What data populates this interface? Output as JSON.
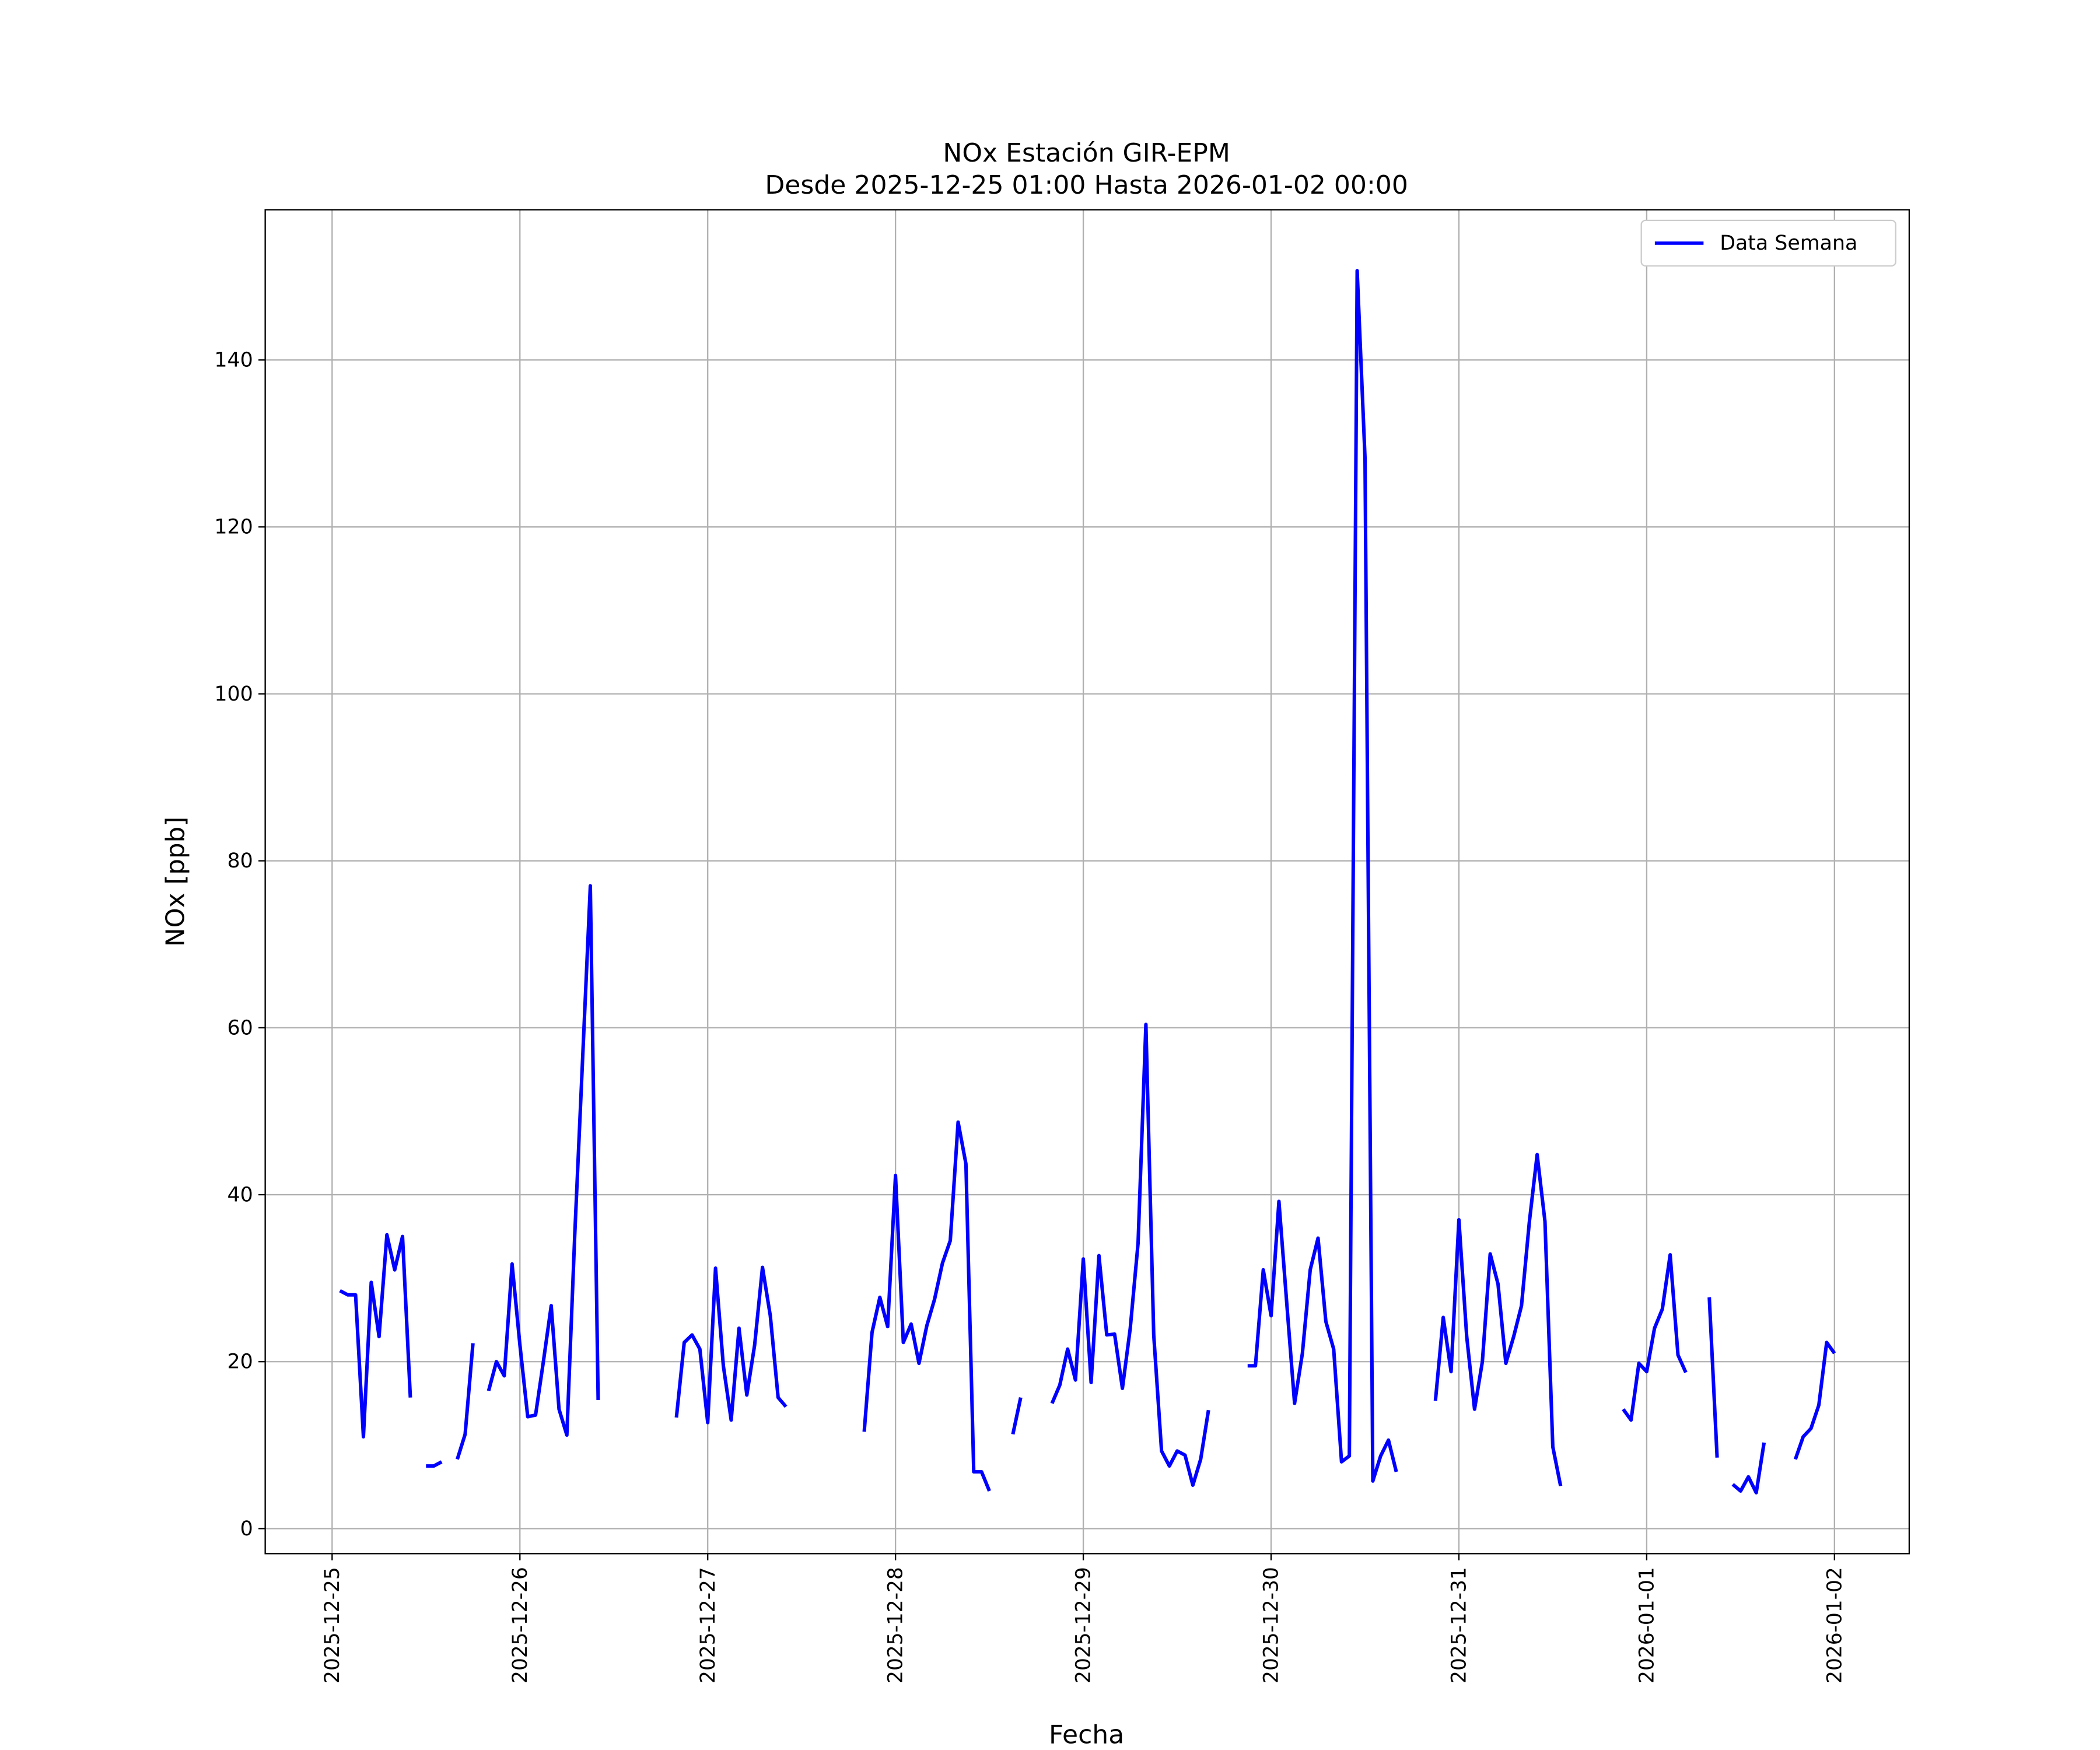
{
  "chart_data": {
    "type": "line",
    "title": "NOx Estación GIR-EPM",
    "subtitle": "Desde 2025-12-25 01:00 Hasta 2026-01-02 00:00",
    "x_label": "Fecha",
    "y_label": "NOx [ppb]",
    "x": [
      "2025-12-25 01:00",
      "2025-12-25 02:00",
      "2025-12-25 03:00",
      "2025-12-25 04:00",
      "2025-12-25 05:00",
      "2025-12-25 06:00",
      "2025-12-25 07:00",
      "2025-12-25 08:00",
      "2025-12-25 09:00",
      "2025-12-25 10:00",
      "2025-12-25 11:00",
      "2025-12-25 12:00",
      "2025-12-25 13:00",
      "2025-12-25 14:00",
      "2025-12-25 15:00",
      "2025-12-25 16:00",
      "2025-12-25 17:00",
      "2025-12-25 18:00",
      "2025-12-25 19:00",
      "2025-12-25 20:00",
      "2025-12-25 21:00",
      "2025-12-25 22:00",
      "2025-12-25 23:00",
      "2025-12-26 00:00",
      "2025-12-26 01:00",
      "2025-12-26 02:00",
      "2025-12-26 03:00",
      "2025-12-26 04:00",
      "2025-12-26 05:00",
      "2025-12-26 06:00",
      "2025-12-26 07:00",
      "2025-12-26 08:00",
      "2025-12-26 09:00",
      "2025-12-26 10:00",
      "2025-12-26 11:00",
      "2025-12-26 12:00",
      "2025-12-26 13:00",
      "2025-12-26 14:00",
      "2025-12-26 15:00",
      "2025-12-26 16:00",
      "2025-12-26 17:00",
      "2025-12-26 18:00",
      "2025-12-26 19:00",
      "2025-12-26 20:00",
      "2025-12-26 21:00",
      "2025-12-26 22:00",
      "2025-12-26 23:00",
      "2025-12-27 00:00",
      "2025-12-27 01:00",
      "2025-12-27 02:00",
      "2025-12-27 03:00",
      "2025-12-27 04:00",
      "2025-12-27 05:00",
      "2025-12-27 06:00",
      "2025-12-27 07:00",
      "2025-12-27 08:00",
      "2025-12-27 09:00",
      "2025-12-27 10:00",
      "2025-12-27 11:00",
      "2025-12-27 12:00",
      "2025-12-27 13:00",
      "2025-12-27 14:00",
      "2025-12-27 15:00",
      "2025-12-27 16:00",
      "2025-12-27 17:00",
      "2025-12-27 18:00",
      "2025-12-27 19:00",
      "2025-12-27 20:00",
      "2025-12-27 21:00",
      "2025-12-27 22:00",
      "2025-12-27 23:00",
      "2025-12-28 00:00",
      "2025-12-28 01:00",
      "2025-12-28 02:00",
      "2025-12-28 03:00",
      "2025-12-28 04:00",
      "2025-12-28 05:00",
      "2025-12-28 06:00",
      "2025-12-28 07:00",
      "2025-12-28 08:00",
      "2025-12-28 09:00",
      "2025-12-28 10:00",
      "2025-12-28 11:00",
      "2025-12-28 12:00",
      "2025-12-28 13:00",
      "2025-12-28 14:00",
      "2025-12-28 15:00",
      "2025-12-28 16:00",
      "2025-12-28 17:00",
      "2025-12-28 18:00",
      "2025-12-28 19:00",
      "2025-12-28 20:00",
      "2025-12-28 21:00",
      "2025-12-28 22:00",
      "2025-12-28 23:00",
      "2025-12-29 00:00",
      "2025-12-29 01:00",
      "2025-12-29 02:00",
      "2025-12-29 03:00",
      "2025-12-29 04:00",
      "2025-12-29 05:00",
      "2025-12-29 06:00",
      "2025-12-29 07:00",
      "2025-12-29 08:00",
      "2025-12-29 09:00",
      "2025-12-29 10:00",
      "2025-12-29 11:00",
      "2025-12-29 12:00",
      "2025-12-29 13:00",
      "2025-12-29 14:00",
      "2025-12-29 15:00",
      "2025-12-29 16:00",
      "2025-12-29 17:00",
      "2025-12-29 18:00",
      "2025-12-29 19:00",
      "2025-12-29 20:00",
      "2025-12-29 21:00",
      "2025-12-29 22:00",
      "2025-12-29 23:00",
      "2025-12-30 00:00",
      "2025-12-30 01:00",
      "2025-12-30 02:00",
      "2025-12-30 03:00",
      "2025-12-30 04:00",
      "2025-12-30 05:00",
      "2025-12-30 06:00",
      "2025-12-30 07:00",
      "2025-12-30 08:00",
      "2025-12-30 09:00",
      "2025-12-30 10:00",
      "2025-12-30 11:00",
      "2025-12-30 12:00",
      "2025-12-30 13:00",
      "2025-12-30 14:00",
      "2025-12-30 15:00",
      "2025-12-30 16:00",
      "2025-12-30 17:00",
      "2025-12-30 18:00",
      "2025-12-30 19:00",
      "2025-12-30 20:00",
      "2025-12-30 21:00",
      "2025-12-30 22:00",
      "2025-12-30 23:00",
      "2025-12-31 00:00",
      "2025-12-31 01:00",
      "2025-12-31 02:00",
      "2025-12-31 03:00",
      "2025-12-31 04:00",
      "2025-12-31 05:00",
      "2025-12-31 06:00",
      "2025-12-31 07:00",
      "2025-12-31 08:00",
      "2025-12-31 09:00",
      "2025-12-31 10:00",
      "2025-12-31 11:00",
      "2025-12-31 12:00",
      "2025-12-31 13:00",
      "2025-12-31 14:00",
      "2025-12-31 15:00",
      "2025-12-31 16:00",
      "2025-12-31 17:00",
      "2025-12-31 18:00",
      "2025-12-31 19:00",
      "2025-12-31 20:00",
      "2025-12-31 21:00",
      "2025-12-31 22:00",
      "2025-12-31 23:00",
      "2026-01-01 00:00",
      "2026-01-01 01:00",
      "2026-01-01 02:00",
      "2026-01-01 03:00",
      "2026-01-01 04:00",
      "2026-01-01 05:00",
      "2026-01-01 06:00",
      "2026-01-01 07:00",
      "2026-01-01 08:00",
      "2026-01-01 09:00",
      "2026-01-01 10:00",
      "2026-01-01 11:00",
      "2026-01-01 12:00",
      "2026-01-01 13:00",
      "2026-01-01 14:00",
      "2026-01-01 15:00",
      "2026-01-01 16:00",
      "2026-01-01 17:00",
      "2026-01-01 18:00",
      "2026-01-01 19:00",
      "2026-01-01 20:00",
      "2026-01-01 21:00",
      "2026-01-01 22:00",
      "2026-01-01 23:00",
      "2026-01-02 00:00"
    ],
    "series": [
      {
        "name": "Data Semana",
        "color": "#0000ff",
        "values": [
          28.5,
          28,
          28,
          11,
          29.5,
          23,
          35.2,
          31,
          35,
          15.7,
          null,
          7.5,
          7.5,
          8,
          null,
          8.3,
          11.3,
          22.2,
          null,
          16.5,
          20,
          18.3,
          31.7,
          22,
          13.4,
          13.6,
          20,
          26.7,
          14.3,
          11.2,
          35,
          56,
          77,
          15.4,
          null,
          null,
          null,
          null,
          null,
          null,
          null,
          null,
          null,
          13.3,
          22.3,
          23.2,
          21.5,
          12.7,
          31.2,
          19.5,
          13,
          24,
          16,
          22,
          31.3,
          25.5,
          15.7,
          14.6,
          null,
          null,
          null,
          null,
          null,
          null,
          null,
          null,
          null,
          11.6,
          23.5,
          27.7,
          24.2,
          42.3,
          22.3,
          24.5,
          19.8,
          24.3,
          27.5,
          31.8,
          34.5,
          48.7,
          43.7,
          6.8,
          6.8,
          4.5,
          null,
          null,
          11.3,
          15.7,
          null,
          null,
          null,
          15,
          17.2,
          21.5,
          17.8,
          32.3,
          17.5,
          32.7,
          23.2,
          23.3,
          16.8,
          24,
          34.2,
          60.4,
          23.2,
          9.3,
          7.5,
          9.3,
          8.8,
          5.2,
          8.3,
          14.2,
          null,
          null,
          null,
          null,
          19.5,
          19.5,
          31,
          25.5,
          39.2,
          27,
          15,
          21,
          31,
          34.8,
          24.8,
          21.5,
          8,
          8.7,
          150.7,
          128.3,
          5.7,
          8.7,
          10.6,
          6.8,
          null,
          null,
          null,
          null,
          15.3,
          25.3,
          18.8,
          37,
          23,
          14.3,
          20,
          32.9,
          29.3,
          19.8,
          23,
          26.7,
          36.7,
          44.8,
          36.8,
          9.8,
          5.1,
          null,
          null,
          null,
          null,
          null,
          null,
          null,
          14.3,
          13,
          19.8,
          18.8,
          24,
          26.3,
          32.8,
          20.8,
          18.7,
          null,
          null,
          27.7,
          8.5,
          null,
          5.3,
          4.5,
          6.2,
          4.3,
          10.3,
          null,
          null,
          null,
          8.3,
          11,
          12,
          14.8,
          22.3,
          21
        ]
      }
    ],
    "xlim": [
      "2025-12-24 15:27",
      "2026-01-02 09:33"
    ],
    "xticks": [
      "2025-12-25",
      "2025-12-26",
      "2025-12-27",
      "2025-12-28",
      "2025-12-29",
      "2025-12-30",
      "2025-12-31",
      "2026-01-01",
      "2026-01-02"
    ],
    "ylim": [
      -3,
      158
    ],
    "yticks": [
      0,
      20,
      40,
      60,
      80,
      100,
      120,
      140
    ],
    "grid": true,
    "legend": "upper right"
  }
}
